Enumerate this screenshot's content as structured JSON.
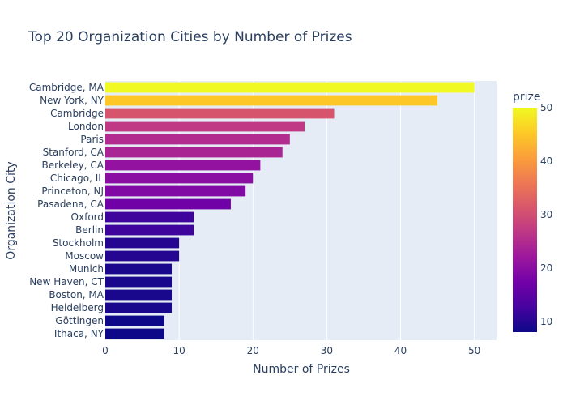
{
  "chart_data": {
    "type": "bar",
    "orientation": "horizontal",
    "title": "Top 20 Organization Cities by Number of Prizes",
    "xlabel": "Number of Prizes",
    "ylabel": "Organization City",
    "xlim": [
      0,
      53
    ],
    "x_ticks": [
      "0",
      "10",
      "20",
      "30",
      "40",
      "50"
    ],
    "grid": true,
    "categories": [
      "Cambridge, MA",
      "New York, NY",
      "Cambridge",
      "London",
      "Paris",
      "Stanford, CA",
      "Berkeley, CA",
      "Chicago, IL",
      "Princeton, NJ",
      "Pasadena, CA",
      "Oxford",
      "Berlin",
      "Stockholm",
      "Moscow",
      "Munich",
      "New Haven, CT",
      "Boston, MA",
      "Heidelberg",
      "Göttingen",
      "Ithaca, NY"
    ],
    "values": [
      50,
      45,
      31,
      27,
      25,
      24,
      21,
      20,
      19,
      17,
      12,
      12,
      10,
      10,
      9,
      9,
      9,
      9,
      8,
      8
    ],
    "colorbar": {
      "title": "prize",
      "range": [
        8,
        50
      ],
      "ticks": [
        "10",
        "20",
        "30",
        "40",
        "50"
      ],
      "colorscale": "Plasma"
    }
  }
}
